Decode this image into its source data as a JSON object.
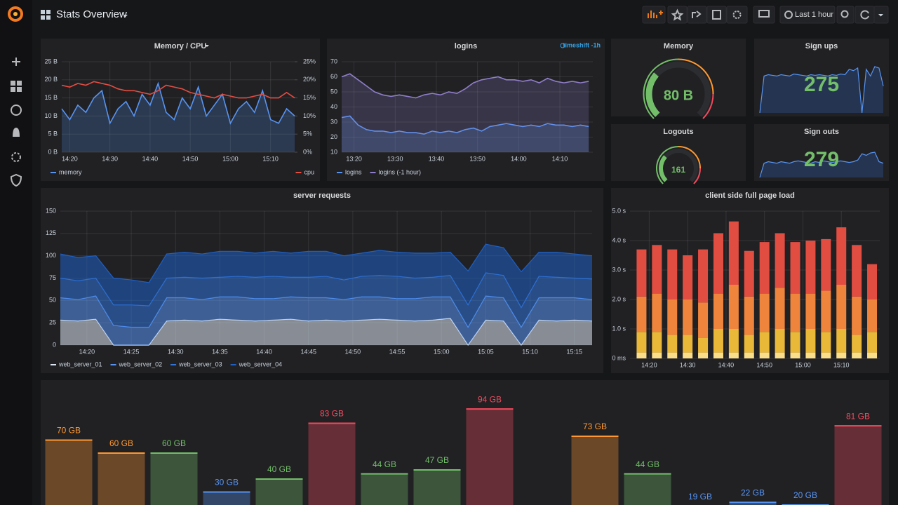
{
  "header": {
    "title": "Stats Overview",
    "time_range": "Last 1 hour"
  },
  "chart_data": [
    {
      "type": "line",
      "title": "Memory / CPU",
      "x": [
        "14:18",
        "14:20",
        "14:22",
        "14:24",
        "14:26",
        "14:28",
        "14:30",
        "14:32",
        "14:34",
        "14:36",
        "14:38",
        "14:40",
        "14:42",
        "14:44",
        "14:46",
        "14:48",
        "14:50",
        "14:52",
        "14:54",
        "14:56",
        "14:58",
        "15:00",
        "15:02",
        "15:04",
        "15:06",
        "15:08",
        "15:10",
        "15:12",
        "15:14",
        "15:16"
      ],
      "series": [
        {
          "name": "memory",
          "color": "#5794f2",
          "values": [
            12,
            9,
            13,
            11,
            15,
            17,
            8,
            12,
            14,
            10,
            16,
            13,
            19,
            11,
            9,
            15,
            12,
            18,
            10,
            13,
            16,
            8,
            12,
            14,
            11,
            17,
            9,
            8,
            12,
            10
          ]
        },
        {
          "name": "cpu",
          "color": "#e24d42",
          "axis": "y2",
          "values": [
            18.5,
            18,
            19,
            18.5,
            19.5,
            19,
            18.5,
            17.5,
            17,
            17,
            16.5,
            16,
            17,
            18.5,
            18,
            17.5,
            16.5,
            16,
            15.5,
            15,
            16,
            15.5,
            15,
            15,
            15.5,
            16,
            15,
            15,
            16.5,
            15
          ]
        }
      ],
      "xlim": [
        "14:18",
        "15:16"
      ],
      "xticks": [
        "14:20",
        "14:30",
        "14:40",
        "14:50",
        "15:00",
        "15:10"
      ],
      "ylim": [
        0,
        25
      ],
      "yticks": [
        {
          "value": 0,
          "label": "0 B"
        },
        {
          "value": 5,
          "label": "5 B"
        },
        {
          "value": 10,
          "label": "10 B"
        },
        {
          "value": 15,
          "label": "15 B"
        },
        {
          "value": 20,
          "label": "20 B"
        },
        {
          "value": 25,
          "label": "25 B"
        }
      ],
      "y2lim": [
        0,
        25
      ],
      "y2ticks": [
        {
          "value": 0,
          "label": "0%"
        },
        {
          "value": 5,
          "label": "5%"
        },
        {
          "value": 10,
          "label": "10%"
        },
        {
          "value": 15,
          "label": "15%"
        },
        {
          "value": 20,
          "label": "20%"
        },
        {
          "value": 25,
          "label": "25%"
        }
      ],
      "grid": true
    },
    {
      "type": "line",
      "title": "logins",
      "annotation": "timeshift -1h",
      "x": [
        "13:17",
        "13:19",
        "13:21",
        "13:23",
        "13:25",
        "13:27",
        "13:29",
        "13:31",
        "13:33",
        "13:35",
        "13:37",
        "13:39",
        "13:41",
        "13:43",
        "13:45",
        "13:47",
        "13:49",
        "13:51",
        "13:53",
        "13:55",
        "13:57",
        "13:59",
        "14:01",
        "14:03",
        "14:05",
        "14:07",
        "14:09",
        "14:11",
        "14:13",
        "14:15",
        "14:17"
      ],
      "series": [
        {
          "name": "logins",
          "color": "#5794f2",
          "values": [
            33,
            34,
            28,
            25,
            24,
            24,
            23,
            24,
            23,
            23,
            22,
            24,
            23,
            24,
            23,
            25,
            26,
            24,
            27,
            28,
            29,
            28,
            27,
            28,
            27,
            29,
            28,
            28,
            27,
            28,
            27
          ]
        },
        {
          "name": "logins (-1 hour)",
          "color": "#8f7ec9",
          "values": [
            60,
            62,
            58,
            54,
            50,
            48,
            47,
            48,
            47,
            46,
            48,
            49,
            48,
            50,
            49,
            52,
            56,
            58,
            59,
            60,
            58,
            58,
            57,
            58,
            56,
            59,
            57,
            56,
            57,
            56,
            57
          ]
        }
      ],
      "xlim": [
        "13:17",
        "14:18"
      ],
      "xticks": [
        "13:20",
        "13:30",
        "13:40",
        "13:50",
        "14:00",
        "14:10"
      ],
      "ylim": [
        10,
        70
      ],
      "yticks": [
        10,
        20,
        30,
        40,
        50,
        60,
        70
      ],
      "grid": true
    },
    {
      "type": "gauge",
      "title": "Memory",
      "value": 80,
      "value_label": "80 B",
      "range": [
        0,
        250
      ],
      "color": "#73bf69"
    },
    {
      "type": "stat",
      "title": "Sign ups",
      "value": 275,
      "color": "#73bf69",
      "sparkline": [
        5,
        60,
        62,
        61,
        60,
        62,
        61,
        60,
        63,
        62,
        61,
        60,
        62,
        61,
        62,
        61,
        60,
        62,
        61,
        63,
        62,
        70,
        68,
        72,
        5,
        70,
        60,
        74,
        72,
        45
      ]
    },
    {
      "type": "gauge",
      "title": "Logouts",
      "value": 161,
      "range": [
        0,
        500
      ],
      "color": "#73bf69"
    },
    {
      "type": "stat",
      "title": "Sign outs",
      "value": 279,
      "color": "#73bf69",
      "sparkline": [
        40,
        58,
        60,
        59,
        58,
        60,
        59,
        58,
        60,
        61,
        60,
        59,
        58,
        60,
        59,
        61,
        60,
        59,
        60,
        61,
        60,
        59,
        60,
        62,
        70,
        68,
        71,
        72,
        60,
        58
      ]
    },
    {
      "type": "area",
      "title": "server requests",
      "stacked": true,
      "x": [
        "14:17",
        "14:19",
        "14:21",
        "14:23",
        "14:25",
        "14:27",
        "14:29",
        "14:31",
        "14:33",
        "14:35",
        "14:37",
        "14:39",
        "14:41",
        "14:43",
        "14:45",
        "14:47",
        "14:49",
        "14:51",
        "14:53",
        "14:55",
        "14:57",
        "14:59",
        "15:01",
        "15:03",
        "15:05",
        "15:07",
        "15:09",
        "15:11",
        "15:13",
        "15:15",
        "15:17"
      ],
      "series": [
        {
          "name": "web_server_01",
          "color": "#dce6f2",
          "values": [
            28,
            27,
            29,
            0,
            0,
            0,
            27,
            28,
            27,
            29,
            28,
            27,
            28,
            29,
            27,
            28,
            27,
            28,
            29,
            28,
            27,
            28,
            30,
            0,
            28,
            27,
            0,
            28,
            27,
            28,
            27
          ]
        },
        {
          "name": "web_server_02",
          "color": "#5794f2",
          "values": [
            25,
            24,
            26,
            22,
            20,
            20,
            26,
            25,
            24,
            25,
            26,
            25,
            24,
            25,
            26,
            25,
            24,
            26,
            25,
            24,
            25,
            26,
            24,
            20,
            27,
            26,
            20,
            25,
            26,
            25,
            24
          ]
        },
        {
          "name": "web_server_03",
          "color": "#3274d9",
          "values": [
            22,
            21,
            20,
            23,
            25,
            24,
            22,
            23,
            24,
            22,
            23,
            24,
            25,
            22,
            23,
            24,
            22,
            23,
            24,
            25,
            23,
            22,
            24,
            25,
            26,
            25,
            22,
            24,
            23,
            22,
            23
          ]
        },
        {
          "name": "web_server_04",
          "color": "#1f60c4",
          "values": [
            27,
            26,
            25,
            30,
            28,
            26,
            27,
            28,
            27,
            29,
            28,
            27,
            28,
            27,
            29,
            28,
            27,
            26,
            28,
            27,
            28,
            27,
            26,
            38,
            32,
            31,
            40,
            27,
            28,
            27,
            26
          ]
        }
      ],
      "xlim": [
        "14:17",
        "15:17"
      ],
      "xticks": [
        "14:20",
        "14:25",
        "14:30",
        "14:35",
        "14:40",
        "14:45",
        "14:50",
        "14:55",
        "15:00",
        "15:05",
        "15:10",
        "15:15"
      ],
      "ylim": [
        0,
        150
      ],
      "yticks": [
        0,
        25,
        50,
        75,
        100,
        125,
        150
      ],
      "grid": true
    },
    {
      "type": "bar",
      "title": "client side full page load",
      "stacked": true,
      "x": [
        "14:18",
        "14:22",
        "14:26",
        "14:30",
        "14:34",
        "14:38",
        "14:42",
        "14:46",
        "14:50",
        "14:54",
        "14:58",
        "15:02",
        "15:06",
        "15:10",
        "15:14",
        "15:18"
      ],
      "series": [
        {
          "color": "#fade8a",
          "values": [
            0.2,
            0.2,
            0.2,
            0.2,
            0.2,
            0.2,
            0.2,
            0.2,
            0.2,
            0.2,
            0.2,
            0.2,
            0.2,
            0.2,
            0.2,
            0.2
          ]
        },
        {
          "color": "#eab839",
          "values": [
            0.7,
            0.7,
            0.6,
            0.6,
            0.5,
            0.8,
            0.8,
            0.6,
            0.7,
            0.8,
            0.7,
            0.8,
            0.7,
            0.8,
            0.6,
            0.7
          ]
        },
        {
          "color": "#ef843c",
          "values": [
            1.2,
            1.3,
            1.2,
            1.2,
            1.2,
            1.2,
            1.5,
            1.3,
            1.3,
            1.4,
            1.3,
            1.2,
            1.4,
            1.5,
            1.3,
            1.1
          ]
        },
        {
          "color": "#e24d42",
          "values": [
            1.6,
            1.65,
            1.7,
            1.5,
            1.8,
            2.05,
            2.15,
            1.55,
            1.75,
            1.85,
            1.75,
            1.8,
            1.75,
            1.95,
            1.75,
            1.2
          ]
        }
      ],
      "xlim": [
        "14:15",
        "15:20"
      ],
      "xticks": [
        "14:20",
        "14:30",
        "14:40",
        "14:50",
        "15:00",
        "15:10"
      ],
      "ylim": [
        0,
        5
      ],
      "yticks": [
        {
          "value": 0,
          "label": "0 ms"
        },
        {
          "value": 1,
          "label": "1.0 s"
        },
        {
          "value": 2,
          "label": "2.0 s"
        },
        {
          "value": 3,
          "label": "3.0 s"
        },
        {
          "value": 4,
          "label": "4.0 s"
        },
        {
          "value": 5,
          "label": "5.0 s"
        }
      ],
      "grid": true
    },
    {
      "type": "bargauge",
      "values": [
        70,
        60,
        60,
        30,
        40,
        83,
        44,
        47,
        94,
        null,
        73,
        44,
        19,
        22,
        20,
        81
      ],
      "value_labels": [
        "70 GB",
        "60 GB",
        "60 GB",
        "30 GB",
        "40 GB",
        "83 GB",
        "44 GB",
        "47 GB",
        "94 GB",
        null,
        "73 GB",
        "44 GB",
        "19 GB",
        "22 GB",
        "20 GB",
        "81 GB"
      ],
      "colors": [
        "#ff9830",
        "#ff9830",
        "#73bf69",
        "#5794f2",
        "#73bf69",
        "#f2495c",
        "#73bf69",
        "#73bf69",
        "#f2495c",
        null,
        "#ff9830",
        "#73bf69",
        "#5794f2",
        "#5794f2",
        "#5794f2",
        "#f2495c"
      ],
      "ylim": [
        0,
        100
      ]
    }
  ]
}
